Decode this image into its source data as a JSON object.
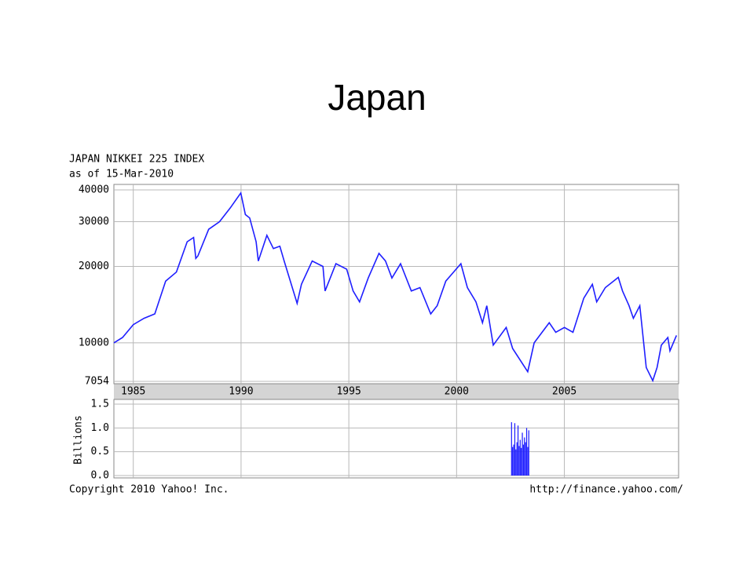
{
  "title": "Japan",
  "header": {
    "line1": "JAPAN NIKKEI 225 INDEX",
    "line2": "as of 15-Mar-2010"
  },
  "footer": {
    "left": "Copyright 2010 Yahoo! Inc.",
    "right": "http://finance.yahoo.com/"
  },
  "chart_data": [
    {
      "type": "line",
      "log_scale": true,
      "grid": true,
      "color": "#1f1fff",
      "x": [
        1984.1,
        1984.5,
        1985.0,
        1985.5,
        1986.0,
        1986.5,
        1987.0,
        1987.5,
        1987.8,
        1987.9,
        1988.0,
        1988.5,
        1989.0,
        1989.5,
        1989.99,
        1990.2,
        1990.4,
        1990.7,
        1990.8,
        1991.2,
        1991.5,
        1991.8,
        1992.0,
        1992.6,
        1992.8,
        1993.3,
        1993.8,
        1993.9,
        1994.4,
        1994.9,
        1995.2,
        1995.5,
        1995.9,
        1996.4,
        1996.7,
        1997.0,
        1997.4,
        1997.9,
        1998.3,
        1998.8,
        1999.1,
        1999.5,
        2000.2,
        2000.5,
        2000.9,
        2001.2,
        2001.4,
        2001.7,
        2002.3,
        2002.6,
        2003.3,
        2003.6,
        2004.3,
        2004.6,
        2005.0,
        2005.4,
        2005.9,
        2006.3,
        2006.5,
        2006.9,
        2007.5,
        2007.7,
        2008.0,
        2008.2,
        2008.5,
        2008.8,
        2009.1,
        2009.3,
        2009.5,
        2009.8,
        2009.9,
        2010.2
      ],
      "values": [
        10000,
        10500,
        11800,
        12500,
        13000,
        17500,
        19000,
        25000,
        26000,
        21500,
        22000,
        28000,
        30000,
        34000,
        38900,
        32000,
        31000,
        25000,
        21000,
        26500,
        23500,
        24000,
        21000,
        14300,
        17000,
        21000,
        20000,
        16000,
        20500,
        19500,
        16000,
        14500,
        18000,
        22500,
        21000,
        18000,
        20500,
        16000,
        16500,
        13000,
        14000,
        17500,
        20500,
        16500,
        14500,
        12000,
        14000,
        9800,
        11500,
        9500,
        7700,
        10000,
        12000,
        11000,
        11500,
        11000,
        15000,
        17000,
        14500,
        16500,
        18100,
        16000,
        14000,
        12500,
        14000,
        8000,
        7100,
        8000,
        9800,
        10500,
        9300,
        10700
      ],
      "xlim": [
        1984.1,
        2010.3
      ],
      "xticks": [
        1985,
        1990,
        1995,
        2000,
        2005
      ],
      "ylim": [
        7054,
        40000
      ],
      "yticks": [
        7054,
        10000,
        20000,
        30000,
        40000
      ]
    },
    {
      "type": "bar",
      "ylabel": "Billions",
      "color": "#1f1fff",
      "x": [
        2002.55,
        2002.6,
        2002.65,
        2002.7,
        2002.75,
        2002.8,
        2002.85,
        2002.9,
        2002.95,
        2003.0,
        2003.05,
        2003.1,
        2003.15,
        2003.2,
        2003.25,
        2003.3,
        2003.35
      ],
      "values": [
        1.12,
        0.6,
        0.65,
        1.1,
        0.55,
        0.7,
        1.05,
        0.62,
        0.75,
        0.58,
        0.9,
        0.65,
        0.8,
        0.7,
        1.0,
        0.6,
        0.95
      ],
      "xlim": [
        1984.1,
        2010.3
      ],
      "ylim": [
        0,
        1.5
      ],
      "yticks": [
        {
          "value": 0,
          "label": "0.0"
        },
        {
          "value": 0.5,
          "label": "0.5"
        },
        {
          "value": 1,
          "label": "1.0"
        },
        {
          "value": 1.5,
          "label": "1.5"
        }
      ]
    }
  ]
}
